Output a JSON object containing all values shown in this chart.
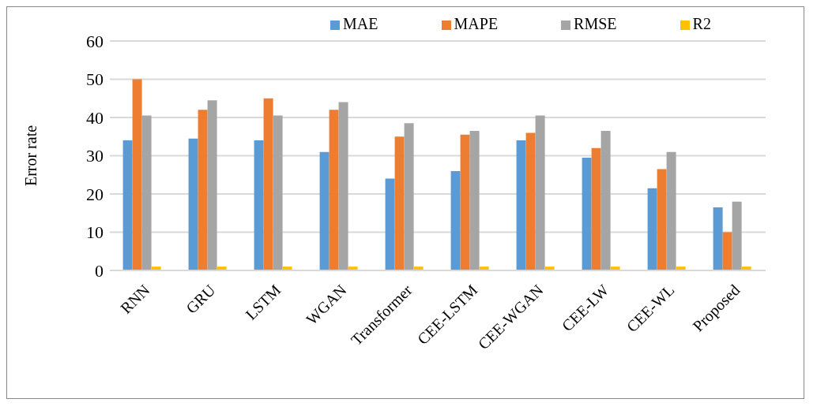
{
  "chart_data": {
    "type": "bar",
    "ylabel": "Error rate",
    "categories": [
      "RNN",
      "GRU",
      "LSTM",
      "WGAN",
      "Transformer",
      "CEE-LSTM",
      "CEE-WGAN",
      "CEE-LW",
      "CEE-WL",
      "Proposed"
    ],
    "series": [
      {
        "name": "MAE",
        "color": "#5b9bd5",
        "values": [
          34,
          34.5,
          34,
          31,
          24,
          26,
          34,
          29.5,
          21.5,
          16.5
        ]
      },
      {
        "name": "MAPE",
        "color": "#ed7d31",
        "values": [
          50,
          42,
          45,
          42,
          35,
          35.5,
          36,
          32,
          26.5,
          10
        ]
      },
      {
        "name": "RMSE",
        "color": "#a5a5a5",
        "values": [
          40.5,
          44.5,
          40.5,
          44,
          38.5,
          36.5,
          40.5,
          36.5,
          31,
          18
        ]
      },
      {
        "name": "R2",
        "color": "#ffc000",
        "values": [
          1,
          1,
          1,
          1,
          1,
          1,
          1,
          1,
          1,
          1
        ]
      }
    ],
    "ylim": [
      0,
      60
    ],
    "yticks": [
      0,
      10,
      20,
      30,
      40,
      50,
      60
    ],
    "grid": "y",
    "legend": "top"
  }
}
